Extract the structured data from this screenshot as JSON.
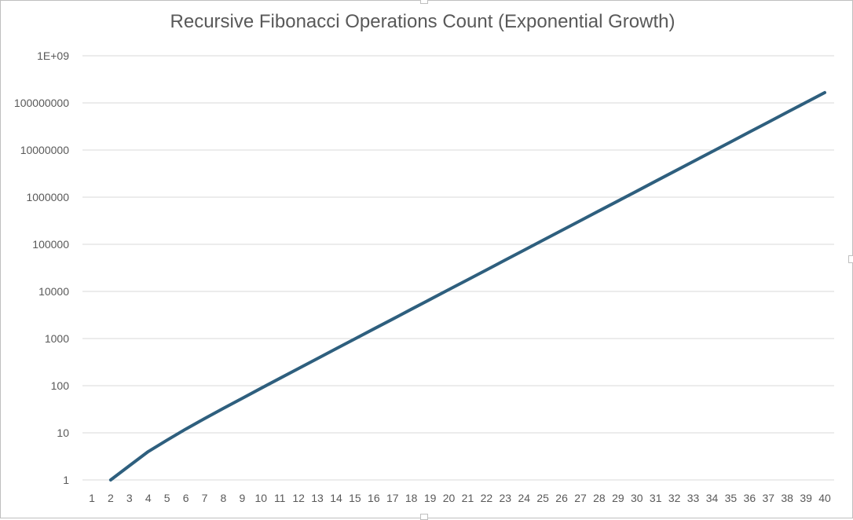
{
  "chart_data": {
    "type": "line",
    "title": "Recursive Fibonacci Operations Count (Exponential Growth)",
    "xlabel": "",
    "ylabel": "",
    "y_scale": "log10",
    "ylim": [
      1,
      1000000000
    ],
    "grid": "horizontal",
    "legend": "none",
    "x_tick_labels": [
      "1",
      "2",
      "3",
      "4",
      "5",
      "6",
      "7",
      "8",
      "9",
      "10",
      "11",
      "12",
      "13",
      "14",
      "15",
      "16",
      "17",
      "18",
      "19",
      "20",
      "21",
      "22",
      "23",
      "24",
      "25",
      "26",
      "27",
      "28",
      "29",
      "30",
      "31",
      "32",
      "33",
      "34",
      "35",
      "36",
      "37",
      "38",
      "39",
      "40"
    ],
    "y_tick_labels": [
      "1",
      "10",
      "100",
      "1000",
      "10000",
      "100000",
      "1000000",
      "10000000",
      "100000000",
      "1E+09"
    ],
    "series": [
      {
        "color": "#2e5f7e",
        "x": [
          2,
          3,
          4,
          5,
          6,
          7,
          8,
          9,
          10,
          11,
          12,
          13,
          14,
          15,
          16,
          17,
          18,
          19,
          20,
          21,
          22,
          23,
          24,
          25,
          26,
          27,
          28,
          29,
          30,
          31,
          32,
          33,
          34,
          35,
          36,
          37,
          38,
          39,
          40
        ],
        "values": [
          1,
          2,
          4,
          7,
          12,
          20,
          33,
          54,
          88,
          143,
          232,
          376,
          609,
          986,
          1596,
          2583,
          4180,
          6764,
          10945,
          17710,
          28656,
          46367,
          75024,
          121392,
          196417,
          317810,
          514228,
          832039,
          1346268,
          2178308,
          3524577,
          5702886,
          9227464,
          14930351,
          24157816,
          39088168,
          63245985,
          102334154,
          165580140
        ]
      }
    ]
  }
}
